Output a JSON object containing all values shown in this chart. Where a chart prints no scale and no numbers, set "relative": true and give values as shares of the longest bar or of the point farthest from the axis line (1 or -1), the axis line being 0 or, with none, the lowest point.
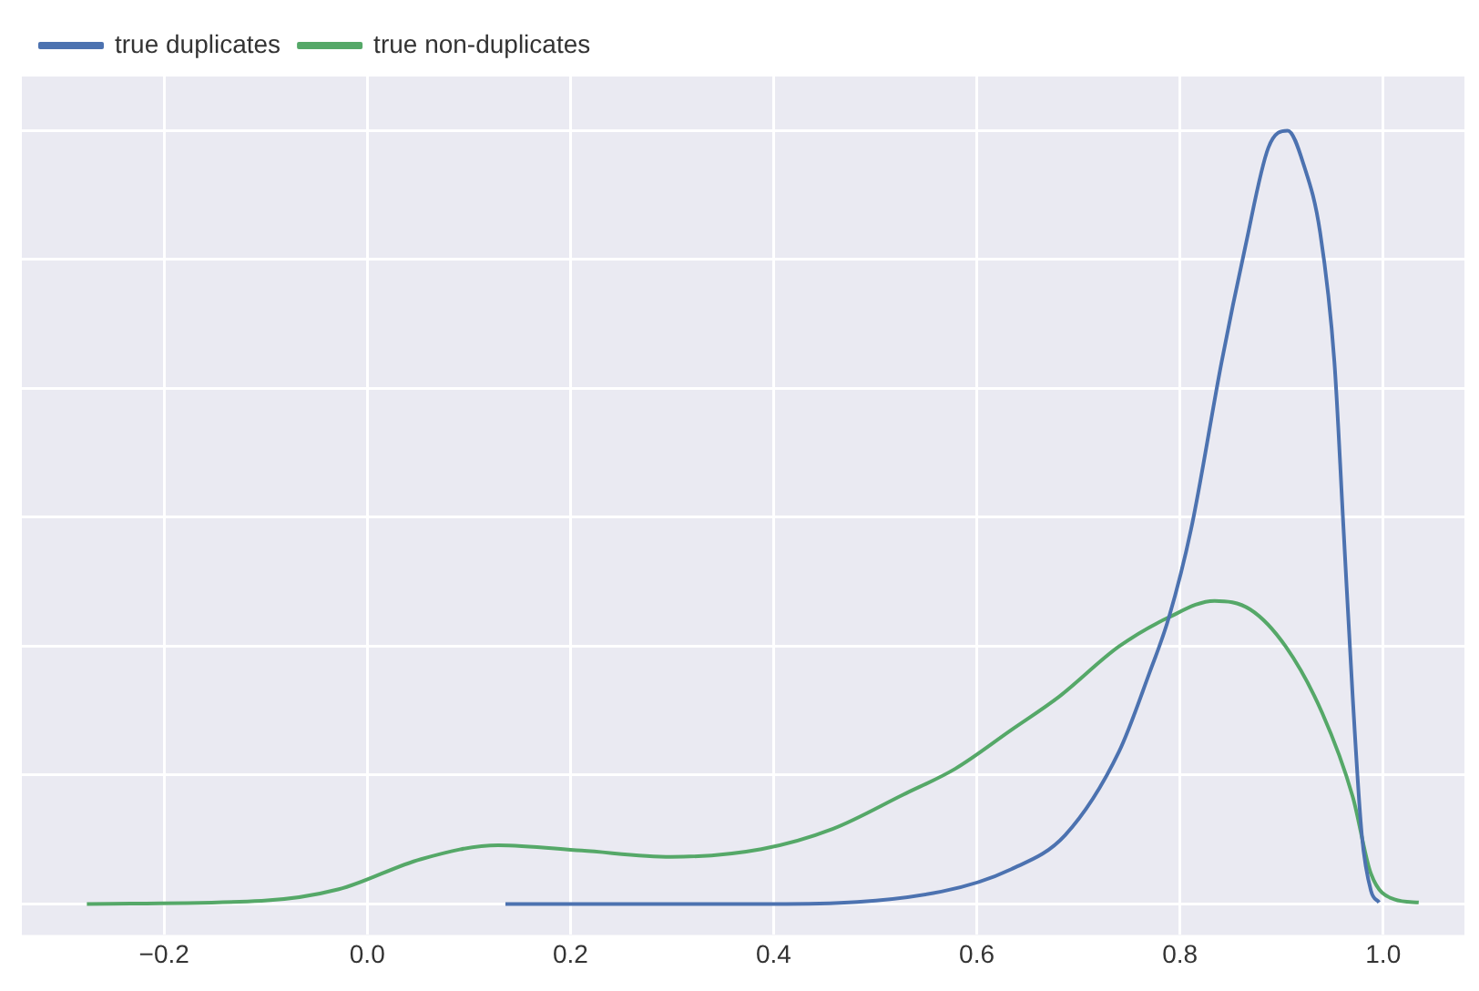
{
  "chart_data": {
    "type": "line",
    "relative": true,
    "xlim": [
      -0.34,
      1.08
    ],
    "xticks": [
      {
        "value": -0.2,
        "label": "−0.2"
      },
      {
        "value": 0,
        "label": "0.0"
      },
      0.2,
      0.4,
      0.6,
      0.8,
      {
        "value": 1,
        "label": "1.0"
      }
    ],
    "grid": true,
    "legend": "top left",
    "series": [
      {
        "name": "true duplicates",
        "color": "#4c72b0",
        "x": [
          0.136,
          0.4,
          0.565,
          0.634,
          0.687,
          0.74,
          0.77,
          0.789,
          0.811,
          0.841,
          0.864,
          0.887,
          0.906,
          0.922,
          0.938,
          0.952,
          0.961,
          0.97,
          0.979,
          0.988,
          0.996
        ],
        "values": [
          0,
          0,
          0.016,
          0.045,
          0.089,
          0.197,
          0.299,
          0.37,
          0.485,
          0.701,
          0.848,
          0.978,
          1,
          0.955,
          0.868,
          0.701,
          0.485,
          0.268,
          0.089,
          0.017,
          0.002
        ]
      },
      {
        "name": "true non-duplicates",
        "color": "#55a868",
        "x": [
          -0.276,
          -0.104,
          -0.028,
          0.053,
          0.129,
          0.211,
          0.299,
          0.388,
          0.458,
          0.527,
          0.579,
          0.634,
          0.681,
          0.74,
          0.788,
          0.834,
          0.869,
          0.904,
          0.94,
          0.97,
          0.988,
          1.011,
          1.035
        ],
        "values": [
          0,
          0.004,
          0.019,
          0.058,
          0.076,
          0.069,
          0.061,
          0.071,
          0.097,
          0.141,
          0.175,
          0.225,
          0.268,
          0.333,
          0.37,
          0.392,
          0.381,
          0.333,
          0.247,
          0.139,
          0.039,
          0.006,
          0.002
        ]
      }
    ]
  }
}
